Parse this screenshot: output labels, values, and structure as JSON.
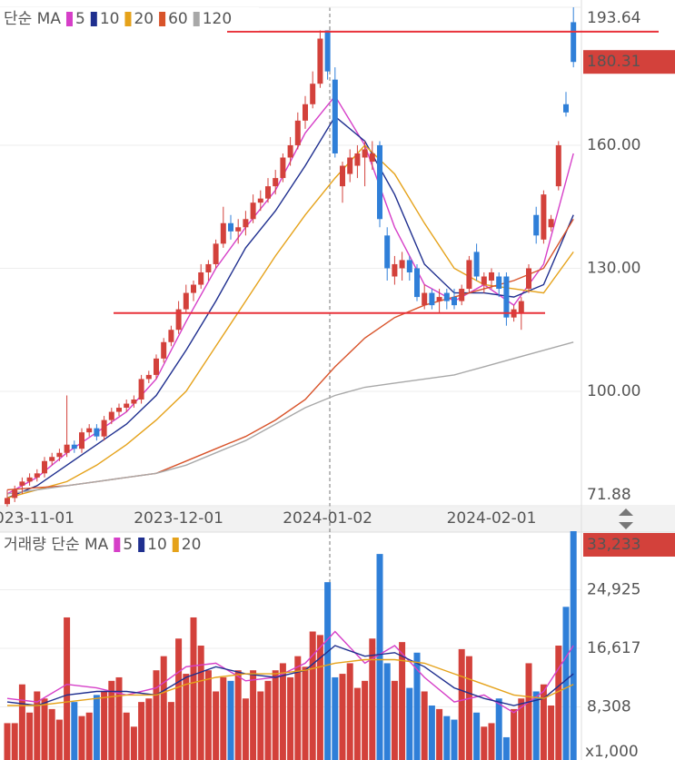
{
  "chart_data": [
    {
      "type": "candlestick",
      "ma_label": "단순 MA",
      "up_color": "#d3413b",
      "down_color": "#2f7fd8",
      "ylim": [
        71.88,
        193.64
      ],
      "yticks": [
        71.88,
        {
          "value": 100,
          "label": "100.00"
        },
        {
          "value": 130,
          "label": "130.00"
        },
        {
          "value": 160,
          "label": "160.00"
        },
        193.64
      ],
      "xticks": [
        {
          "value": 3,
          "label": "2023-11-01"
        },
        {
          "value": 23,
          "label": "2023-12-01"
        },
        {
          "value": 43,
          "label": "2024-01-02"
        },
        {
          "value": 65,
          "label": "2024-02-01"
        }
      ],
      "last_value": 180.31,
      "hlines": [
        {
          "value": 187.7,
          "color": "#e8323a"
        },
        {
          "value": 119.1,
          "color": "#e8323a"
        }
      ],
      "ohlc": [
        [
          72.5,
          76,
          71.9,
          74
        ],
        [
          74,
          77,
          73,
          76
        ],
        [
          77,
          79,
          75,
          78
        ],
        [
          78,
          80,
          77,
          79
        ],
        [
          79,
          81,
          78,
          80
        ],
        [
          80,
          84,
          79,
          83
        ],
        [
          83,
          85,
          82,
          84
        ],
        [
          84,
          86,
          83,
          85
        ],
        [
          85,
          99,
          84,
          87
        ],
        [
          87,
          88,
          85,
          86
        ],
        [
          86,
          91,
          85,
          90
        ],
        [
          90,
          92,
          89,
          91
        ],
        [
          91,
          92,
          88,
          89
        ],
        [
          89,
          94,
          88,
          93
        ],
        [
          93,
          96,
          92,
          95
        ],
        [
          95,
          97,
          94,
          96
        ],
        [
          96,
          98,
          95,
          97
        ],
        [
          97,
          99,
          96,
          98
        ],
        [
          98,
          104,
          97,
          103
        ],
        [
          103,
          105,
          102,
          104
        ],
        [
          104,
          109,
          103,
          108
        ],
        [
          108,
          113,
          107,
          112
        ],
        [
          112,
          116,
          111,
          115
        ],
        [
          115,
          122,
          114,
          120
        ],
        [
          120,
          126,
          119,
          124
        ],
        [
          124,
          127,
          122,
          126
        ],
        [
          126,
          131,
          125,
          129
        ],
        [
          129,
          132,
          127,
          131
        ],
        [
          131,
          137,
          130,
          136
        ],
        [
          136,
          145,
          135,
          141
        ],
        [
          141,
          143,
          137,
          139
        ],
        [
          139,
          142,
          136,
          140
        ],
        [
          140,
          144,
          138,
          142
        ],
        [
          142,
          148,
          141,
          146
        ],
        [
          146,
          149,
          144,
          147
        ],
        [
          147,
          152,
          146,
          150
        ],
        [
          150,
          154,
          148,
          152
        ],
        [
          152,
          158,
          151,
          157
        ],
        [
          157,
          162,
          155,
          160
        ],
        [
          160,
          168,
          159,
          166
        ],
        [
          166,
          172,
          164,
          170
        ],
        [
          170,
          178,
          169,
          175
        ],
        [
          175,
          188,
          174,
          186
        ],
        [
          188,
          188,
          176,
          178
        ],
        [
          176,
          179,
          157,
          158
        ],
        [
          150,
          156,
          146,
          155
        ],
        [
          153,
          159,
          151,
          157
        ],
        [
          155,
          160,
          152,
          158
        ],
        [
          157,
          161,
          150,
          159
        ],
        [
          156,
          161,
          154,
          158
        ],
        [
          160,
          161,
          140,
          142
        ],
        [
          138,
          140,
          127,
          130
        ],
        [
          128,
          133,
          126,
          131
        ],
        [
          130,
          134,
          127,
          132
        ],
        [
          132,
          133,
          127,
          129
        ],
        [
          130,
          131,
          122,
          123
        ],
        [
          121,
          126,
          120,
          124
        ],
        [
          124,
          125,
          120,
          121
        ],
        [
          122,
          125,
          119,
          123
        ],
        [
          124,
          125,
          120,
          122
        ],
        [
          123,
          125,
          120,
          121
        ],
        [
          122,
          126,
          121,
          125
        ],
        [
          125,
          133,
          124,
          132
        ],
        [
          134,
          136,
          127,
          128
        ],
        [
          126,
          129,
          124,
          128
        ],
        [
          127,
          130,
          125,
          129
        ],
        [
          128,
          129,
          123,
          125
        ],
        [
          128,
          129,
          116,
          118
        ],
        [
          118,
          121,
          117,
          120
        ],
        [
          119,
          123,
          115,
          122
        ],
        [
          125,
          131,
          124,
          130
        ],
        [
          143,
          145,
          136,
          138
        ],
        [
          137,
          149,
          136,
          148
        ],
        [
          140,
          143,
          139,
          142
        ],
        [
          150,
          161,
          149,
          160
        ],
        [
          170,
          173,
          167,
          168
        ],
        [
          190,
          193.64,
          179,
          180.31
        ]
      ],
      "ma_x": [
        0,
        4,
        8,
        12,
        16,
        20,
        24,
        28,
        32,
        36,
        40,
        44,
        48,
        52,
        56,
        60,
        64,
        68,
        72,
        76
      ],
      "ma": [
        {
          "name": "5",
          "color": "#d63fc8",
          "values": [
            75,
            79,
            85,
            90,
            95,
            103,
            117,
            130,
            140,
            149,
            163,
            172,
            160,
            140,
            126,
            122,
            126,
            121,
            131,
            158
          ]
        },
        {
          "name": "10",
          "color": "#1f2f8f",
          "values": [
            74,
            77,
            82,
            87,
            92,
            99,
            110,
            122,
            135,
            144,
            155,
            167,
            161,
            148,
            131,
            124,
            124,
            123,
            126,
            143
          ]
        },
        {
          "name": "20",
          "color": "#e5a21a",
          "values": [
            74,
            76,
            78,
            82,
            87,
            93,
            100,
            111,
            122,
            133,
            143,
            152,
            160,
            153,
            141,
            130,
            126,
            125,
            124,
            134
          ]
        },
        {
          "name": "60",
          "color": "#d8532a",
          "values": [
            76,
            76.5,
            77,
            78,
            79,
            80,
            83,
            86,
            89,
            93,
            98,
            106,
            113,
            118,
            121,
            123,
            125,
            127,
            130,
            142
          ]
        },
        {
          "name": "120",
          "color": "#a8a8a8",
          "values": [
            75,
            76,
            77,
            78,
            79,
            80,
            82,
            85,
            88,
            92,
            96,
            99,
            101,
            102,
            103,
            104,
            106,
            108,
            110,
            112
          ]
        }
      ]
    },
    {
      "type": "bar",
      "ma_label": "거래량 단순 MA",
      "unit_label": "x1,000",
      "ylim": [
        0,
        33233
      ],
      "yticks": [
        {
          "value": 8308,
          "label": "8,308"
        },
        {
          "value": 16617,
          "label": "16,617"
        },
        {
          "value": 24925,
          "label": "24,925"
        }
      ],
      "last_value": {
        "value": 33233,
        "label": "33,233"
      },
      "values": [
        6000,
        6000,
        11500,
        7500,
        10500,
        9500,
        8000,
        6500,
        21000,
        9000,
        7000,
        7500,
        10000,
        10500,
        12000,
        12500,
        7500,
        5500,
        9000,
        9500,
        13500,
        15500,
        9000,
        18000,
        13000,
        21000,
        17000,
        13500,
        10500,
        12500,
        12000,
        13500,
        9500,
        13500,
        10500,
        12000,
        13500,
        14500,
        12500,
        15500,
        14000,
        19000,
        18500,
        26000,
        12500,
        13000,
        14500,
        11000,
        12000,
        18000,
        30000,
        14500,
        12000,
        17500,
        11000,
        16000,
        10500,
        8500,
        8000,
        7000,
        6500,
        16500,
        15500,
        7500,
        5500,
        6000,
        9500,
        4000,
        8000,
        9500,
        14500,
        10500,
        11500,
        8500,
        17000,
        22500,
        33233
      ],
      "ma_x": [
        0,
        4,
        8,
        12,
        16,
        20,
        24,
        28,
        32,
        36,
        40,
        44,
        48,
        52,
        56,
        60,
        64,
        68,
        72,
        76
      ],
      "ma": [
        {
          "name": "5",
          "color": "#d63fc8",
          "values": [
            9500,
            9000,
            11500,
            11000,
            10000,
            11000,
            14000,
            14500,
            12000,
            12500,
            14500,
            19000,
            14500,
            17000,
            12500,
            9000,
            10000,
            7500,
            10500,
            17000
          ]
        },
        {
          "name": "10",
          "color": "#1f2f8f",
          "values": [
            9000,
            8500,
            10000,
            10500,
            10500,
            10000,
            12500,
            14000,
            13000,
            12500,
            13500,
            17000,
            15500,
            16000,
            14000,
            11000,
            9500,
            8500,
            9500,
            13000
          ]
        },
        {
          "name": "20",
          "color": "#e5a21a",
          "values": [
            8500,
            8500,
            9000,
            9500,
            10000,
            10000,
            11500,
            12500,
            13000,
            13000,
            13500,
            14500,
            15000,
            15000,
            14500,
            13000,
            11500,
            10000,
            9500,
            11500
          ]
        }
      ]
    }
  ]
}
